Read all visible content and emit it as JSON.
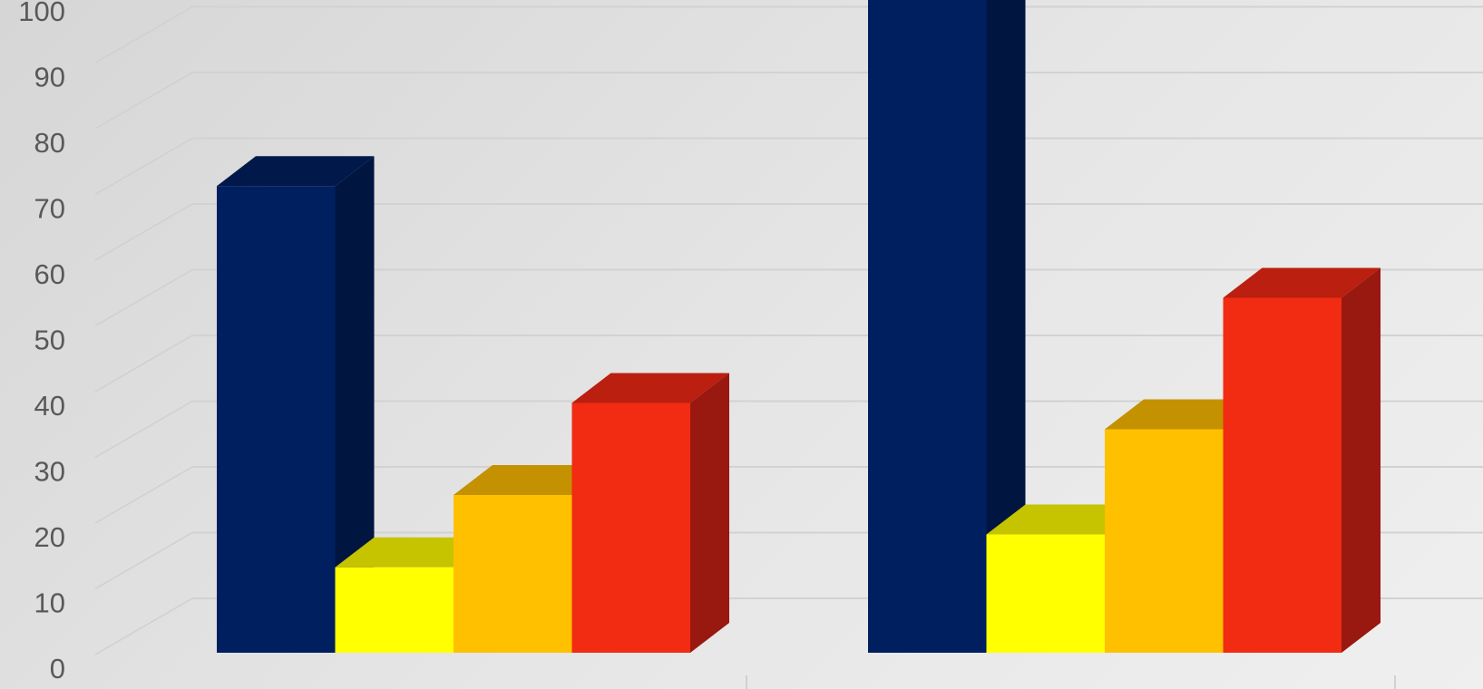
{
  "chart_data": {
    "type": "bar",
    "style": "3d-clustered-column",
    "categories": [
      "",
      ""
    ],
    "series": [
      {
        "values": [
          71,
          104
        ],
        "color": "#001F5F",
        "side_color": "#001641",
        "top_color": "#00184A"
      },
      {
        "values": [
          13,
          18
        ],
        "color": "#FFFF00",
        "side_color": "#BFBF00",
        "top_color": "#C6C300"
      },
      {
        "values": [
          24,
          34
        ],
        "color": "#FFC000",
        "side_color": "#BF9000",
        "top_color": "#C49100"
      },
      {
        "values": [
          38,
          54
        ],
        "color": "#F12C13",
        "side_color": "#991810",
        "top_color": "#BA1F0F"
      }
    ],
    "y_ticks": [
      "0",
      "10",
      "20",
      "30",
      "40",
      "50",
      "60",
      "70",
      "80",
      "90",
      "100"
    ],
    "ylim": [
      0,
      100
    ],
    "grid": true,
    "legend": "none",
    "title": "",
    "xlabel": "",
    "ylabel": ""
  }
}
